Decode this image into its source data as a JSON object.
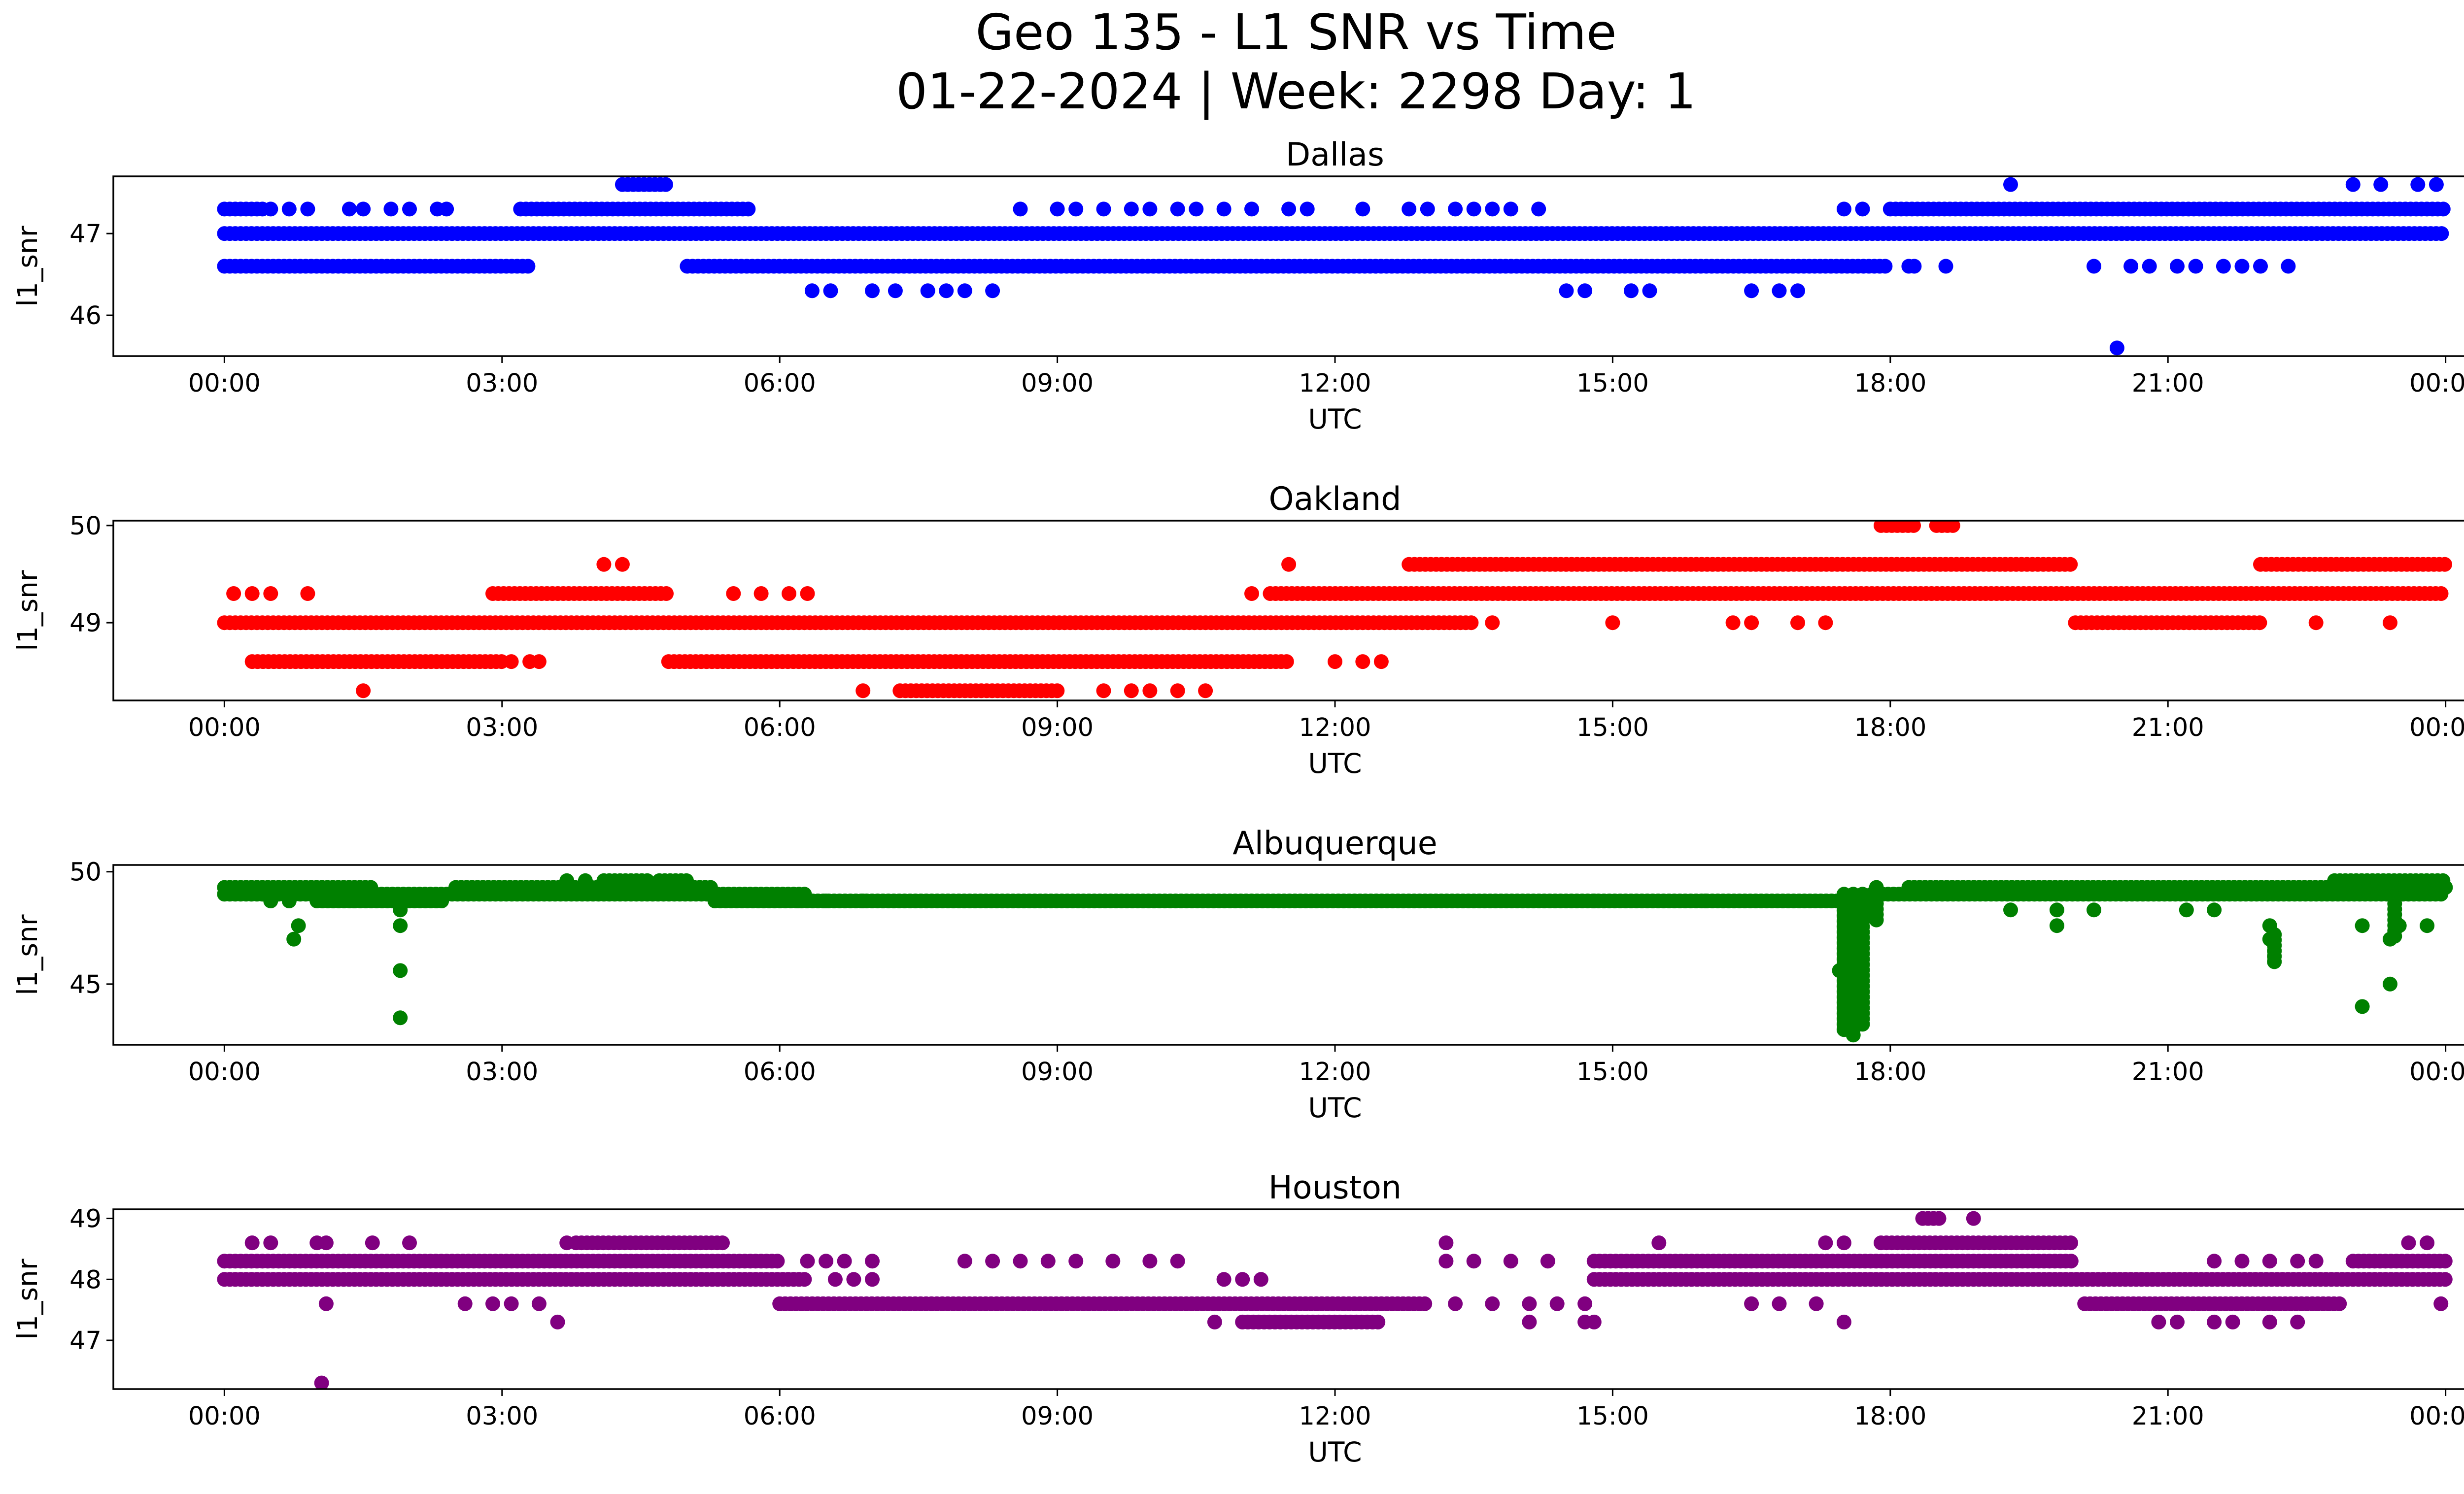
{
  "title_line1": "Geo 135 - L1 SNR vs Time",
  "title_line2": "01-22-2024 | Week: 2298 Day: 1",
  "chart_data": [
    {
      "type": "scatter",
      "title": "Dallas",
      "xlabel": "UTC",
      "ylabel": "l1_snr",
      "color": "#0000ff",
      "xlim_hours": [
        -1.2,
        25.2
      ],
      "ylim": [
        45.5,
        47.7
      ],
      "yticks": [
        46,
        47
      ],
      "xtick_labels": [
        "00:00",
        "03:00",
        "06:00",
        "09:00",
        "12:00",
        "15:00",
        "18:00",
        "21:00",
        "00:00"
      ],
      "series": [
        {
          "y": 47.0,
          "segments": [
            [
              0.0,
              24.0
            ]
          ],
          "points": []
        },
        {
          "y": 47.3,
          "segments": [
            [
              0.0,
              0.45
            ],
            [
              3.2,
              5.7
            ],
            [
              18.0,
              24.0
            ]
          ],
          "points": [
            0.5,
            0.7,
            0.9,
            1.35,
            1.5,
            1.8,
            2.0,
            2.3,
            2.4,
            8.6,
            9.0,
            9.2,
            9.5,
            9.8,
            10.0,
            10.3,
            10.5,
            10.8,
            11.1,
            11.5,
            11.7,
            12.3,
            12.8,
            13.0,
            13.3,
            13.5,
            13.7,
            13.9,
            14.2,
            17.5,
            17.7
          ]
        },
        {
          "y": 46.6,
          "segments": [
            [
              0.0,
              3.3
            ],
            [
              5.0,
              18.0
            ],
            [
              18.2,
              18.3
            ]
          ],
          "points": [
            18.6,
            20.2,
            20.6,
            20.8,
            21.1,
            21.3,
            21.6,
            21.8,
            22.0,
            22.3
          ]
        },
        {
          "y": 46.3,
          "segments": [],
          "points": [
            6.35,
            6.55,
            7.0,
            7.25,
            7.6,
            7.8,
            8.0,
            8.3,
            14.5,
            14.7,
            15.2,
            15.4,
            16.5,
            16.8,
            17.0
          ]
        },
        {
          "y": 47.6,
          "segments": [
            [
              4.3,
              4.8
            ]
          ],
          "points": [
            19.3,
            23.0,
            23.3,
            23.7,
            23.9
          ]
        },
        {
          "y": 45.6,
          "segments": [],
          "points": [
            20.45
          ]
        }
      ]
    },
    {
      "type": "scatter",
      "title": "Oakland",
      "xlabel": "UTC",
      "ylabel": "l1_snr",
      "color": "#ff0000",
      "xlim_hours": [
        -1.2,
        25.2
      ],
      "ylim": [
        48.2,
        50.05
      ],
      "yticks": [
        49,
        50
      ],
      "xtick_labels": [
        "00:00",
        "03:00",
        "06:00",
        "09:00",
        "12:00",
        "15:00",
        "18:00",
        "21:00",
        "00:00"
      ],
      "series": [
        {
          "y": 49.0,
          "segments": [
            [
              0.0,
              13.5
            ],
            [
              20.0,
              22.0
            ]
          ],
          "points": [
            13.7,
            15.0,
            16.3,
            16.5,
            17.0,
            17.3,
            22.6,
            23.4
          ]
        },
        {
          "y": 49.3,
          "segments": [
            [
              2.9,
              4.8
            ],
            [
              11.3,
              24.0
            ]
          ],
          "points": [
            0.1,
            0.3,
            0.5,
            0.9,
            5.5,
            5.8,
            6.1,
            6.3,
            11.1
          ]
        },
        {
          "y": 48.6,
          "segments": [
            [
              0.3,
              3.0
            ],
            [
              4.8,
              11.5
            ]
          ],
          "points": [
            3.1,
            3.3,
            3.4,
            12.0,
            12.3,
            12.5
          ]
        },
        {
          "y": 49.6,
          "segments": [
            [
              12.8,
              20.0
            ],
            [
              22.0,
              24.0
            ]
          ],
          "points": [
            4.1,
            4.3,
            11.5
          ]
        },
        {
          "y": 48.3,
          "segments": [
            [
              7.3,
              9.0
            ]
          ],
          "points": [
            1.5,
            6.9,
            9.5,
            9.8,
            10.0,
            10.3,
            10.6
          ]
        },
        {
          "y": 50.0,
          "segments": [
            [
              17.9,
              18.3
            ],
            [
              18.5,
              18.7
            ]
          ],
          "points": []
        }
      ]
    },
    {
      "type": "scatter",
      "title": "Albuquerque",
      "xlabel": "UTC",
      "ylabel": "l1_snr",
      "color": "#008000",
      "xlim_hours": [
        -1.2,
        25.2
      ],
      "ylim": [
        42.3,
        50.3
      ],
      "yticks": [
        45,
        50
      ],
      "xtick_labels": [
        "00:00",
        "03:00",
        "06:00",
        "09:00",
        "12:00",
        "15:00",
        "18:00",
        "21:00",
        "00:00"
      ],
      "series": [
        {
          "y": 49.3,
          "segments": [
            [
              0.0,
              1.6
            ],
            [
              2.5,
              5.3
            ],
            [
              18.2,
              24.0
            ]
          ],
          "points": []
        },
        {
          "y": 49.0,
          "segments": [
            [
              0.0,
              6.3
            ],
            [
              17.8,
              24.0
            ]
          ],
          "points": []
        },
        {
          "y": 48.7,
          "segments": [
            [
              1.0,
              2.4
            ],
            [
              5.3,
              17.7
            ]
          ],
          "points": [
            0.5,
            0.7,
            1.4,
            6.2,
            6.5,
            6.9,
            14.8,
            16.0
          ]
        },
        {
          "y": 49.6,
          "segments": [
            [
              4.1,
              4.6
            ],
            [
              4.7,
              5.0
            ],
            [
              22.8,
              24.0
            ]
          ],
          "points": [
            3.7,
            3.9
          ]
        },
        {
          "y": 48.3,
          "segments": [],
          "points": [
            1.9,
            19.3,
            19.8,
            20.2,
            21.2,
            21.5
          ]
        },
        {
          "y": 47.6,
          "segments": [],
          "points": [
            0.8,
            1.9,
            19.8,
            22.1,
            23.1,
            23.5,
            23.8
          ]
        },
        {
          "y": 47.0,
          "segments": [],
          "points": [
            0.75,
            22.1,
            23.4
          ]
        },
        {
          "y": 45.6,
          "segments": [],
          "points": [
            1.9,
            17.45
          ]
        },
        {
          "y": 44.0,
          "segments": [],
          "points": [
            23.1
          ]
        },
        {
          "y": 43.5,
          "segments": [],
          "points": [
            1.9
          ]
        },
        {
          "y": 45.0,
          "segments": [],
          "points": [
            23.4
          ]
        }
      ],
      "vertical_runs": [
        {
          "x": 17.5,
          "y_from": 42.8,
          "y_to": 49.0
        },
        {
          "x": 17.6,
          "y_from": 42.6,
          "y_to": 49.0
        },
        {
          "x": 17.7,
          "y_from": 43.0,
          "y_to": 49.0
        },
        {
          "x": 17.85,
          "y_from": 47.8,
          "y_to": 49.3
        },
        {
          "x": 22.15,
          "y_from": 45.8,
          "y_to": 47.2
        },
        {
          "x": 23.45,
          "y_from": 47.0,
          "y_to": 49.3
        }
      ]
    },
    {
      "type": "scatter",
      "title": "Houston",
      "xlabel": "UTC",
      "ylabel": "l1_snr",
      "color": "#800080",
      "xlim_hours": [
        -1.2,
        25.2
      ],
      "ylim": [
        46.2,
        49.15
      ],
      "yticks": [
        47,
        48,
        49
      ],
      "xtick_labels": [
        "00:00",
        "03:00",
        "06:00",
        "09:00",
        "12:00",
        "15:00",
        "18:00",
        "21:00",
        "00:00"
      ],
      "series": [
        {
          "y": 48.0,
          "segments": [
            [
              0.0,
              6.3
            ],
            [
              14.8,
              24.0
            ]
          ],
          "points": [
            6.6,
            6.8,
            7.0,
            10.8,
            11.0,
            11.2
          ]
        },
        {
          "y": 48.3,
          "segments": [
            [
              0.0,
              6.0
            ],
            [
              14.8,
              20.0
            ],
            [
              23.0,
              24.0
            ]
          ],
          "points": [
            6.3,
            6.5,
            6.7,
            7.0,
            8.0,
            8.3,
            8.6,
            8.9,
            9.2,
            9.6,
            10.0,
            10.3,
            13.2,
            13.5,
            13.9,
            14.3,
            21.5,
            21.8,
            22.1,
            22.4,
            22.6
          ]
        },
        {
          "y": 47.6,
          "segments": [
            [
              6.0,
              13.0
            ],
            [
              20.1,
              22.9
            ]
          ],
          "points": [
            1.1,
            2.6,
            2.9,
            3.1,
            3.4,
            13.3,
            13.7,
            14.1,
            14.4,
            14.7,
            16.5,
            16.8,
            17.2
          ]
        },
        {
          "y": 48.6,
          "segments": [
            [
              3.8,
              5.4
            ],
            [
              17.9,
              20.0
            ]
          ],
          "points": [
            0.3,
            0.5,
            1.0,
            1.1,
            1.6,
            2.0,
            3.7,
            13.2,
            15.5,
            17.3,
            17.5,
            23.6,
            23.8
          ]
        },
        {
          "y": 47.3,
          "segments": [
            [
              11.0,
              12.5
            ]
          ],
          "points": [
            3.6,
            10.7,
            14.1,
            14.7,
            14.8,
            17.5,
            20.9,
            21.1,
            21.5,
            21.7,
            22.1,
            22.4
          ]
        },
        {
          "y": 49.0,
          "segments": [
            [
              18.35,
              18.55
            ]
          ],
          "points": [
            18.9
          ]
        },
        {
          "y": 46.3,
          "segments": [],
          "points": [
            1.05
          ]
        },
        {
          "y": 47.6,
          "segments": [],
          "points": [
            23.95
          ]
        }
      ]
    }
  ]
}
